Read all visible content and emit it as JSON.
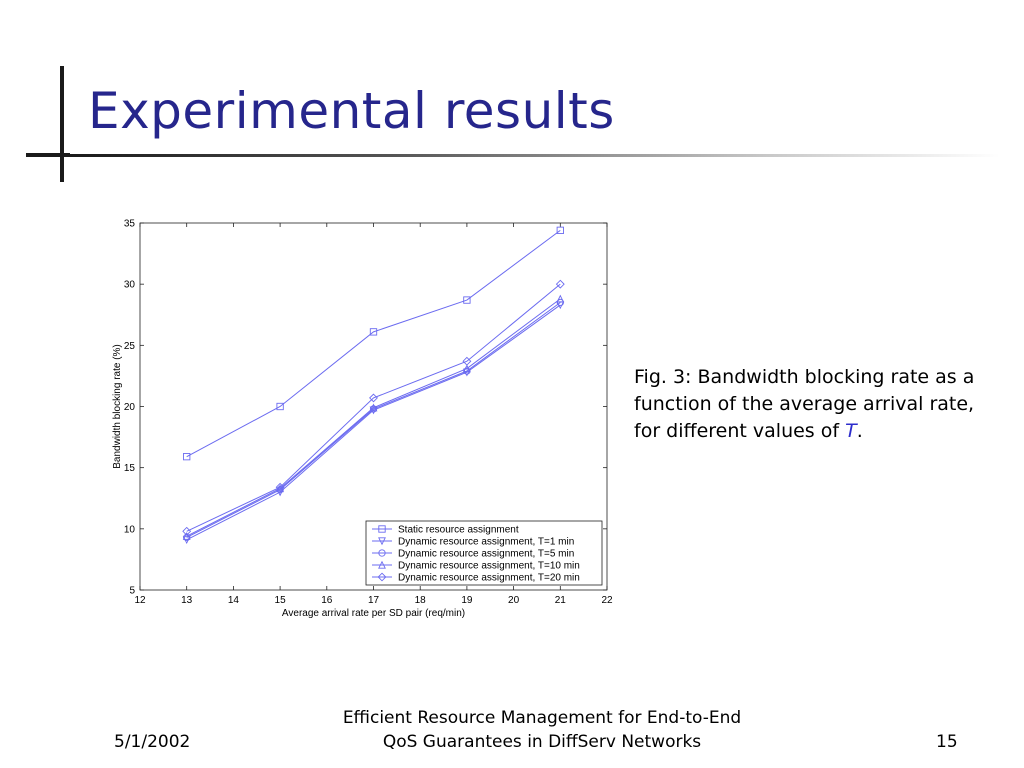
{
  "slide": {
    "title": "Experimental results",
    "caption": {
      "text_before": "Fig. 3: Bandwidth blocking rate as a function of the average arrival rate, for different values of ",
      "variable": "T",
      "text_after": "."
    },
    "footer": {
      "date": "5/1/2002",
      "title_line1": "Efficient Resource Management for End-to-End",
      "title_line2": "QoS Guarantees in DiffServ Networks",
      "page": "15"
    },
    "colors": {
      "title": "#26268c",
      "series": "#6b6bf0",
      "caption_variable": "#2d2dcc"
    }
  },
  "chart_data": {
    "type": "line",
    "title": "",
    "xlabel": "Average arrival rate per SD pair (req/min)",
    "ylabel": "Bandwidth blocking rate (%)",
    "xlim": [
      12,
      22
    ],
    "ylim": [
      5,
      35
    ],
    "xticks": [
      12,
      13,
      14,
      15,
      16,
      17,
      18,
      19,
      20,
      21,
      22
    ],
    "yticks": [
      5,
      10,
      15,
      20,
      25,
      30,
      35
    ],
    "grid": false,
    "legend_position": "bottom-right",
    "x": [
      13,
      15,
      17,
      19,
      21
    ],
    "series": [
      {
        "name": "Static resource assignment",
        "marker": "square",
        "values": [
          15.9,
          20.0,
          26.1,
          28.7,
          34.4
        ]
      },
      {
        "name": "Dynamic resource assignment, T=1 min",
        "marker": "triangle-down",
        "values": [
          9.1,
          13.0,
          19.7,
          22.8,
          28.3
        ]
      },
      {
        "name": "Dynamic resource assignment, T=5 min",
        "marker": "circle",
        "values": [
          9.3,
          13.2,
          19.8,
          22.9,
          28.5
        ]
      },
      {
        "name": "Dynamic resource assignment, T=10 min",
        "marker": "triangle-up",
        "values": [
          9.4,
          13.3,
          19.9,
          23.1,
          28.8
        ]
      },
      {
        "name": "Dynamic resource assignment, T=20 min",
        "marker": "diamond",
        "values": [
          9.8,
          13.4,
          20.7,
          23.7,
          30.0
        ]
      }
    ]
  }
}
